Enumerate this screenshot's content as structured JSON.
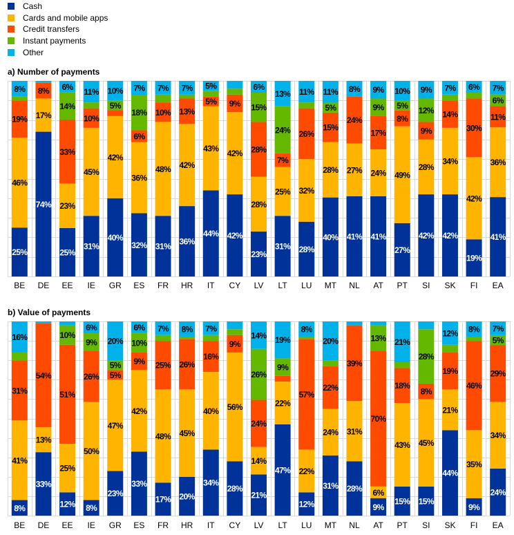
{
  "legend": [
    {
      "label": "Cash",
      "color": "#003299"
    },
    {
      "label": "Cards and mobile apps",
      "color": "#FFB400"
    },
    {
      "label": "Credit transfers",
      "color": "#FF4B00"
    },
    {
      "label": "Instant payments",
      "color": "#65B800"
    },
    {
      "label": "Other",
      "color": "#00B1EA"
    }
  ],
  "chart_data": [
    {
      "type": "bar",
      "stacked": true,
      "normalized_to_100": true,
      "title": "a) Number of payments",
      "xlabel": "",
      "ylabel": "",
      "ylim": [
        0,
        100
      ],
      "value_suffix": "%",
      "min_labeled_value": 5,
      "grid": true,
      "legend": "top-left",
      "categories": [
        "BE",
        "DE",
        "EE",
        "IE",
        "GR",
        "ES",
        "FR",
        "HR",
        "IT",
        "CY",
        "LV",
        "LT",
        "LU",
        "MT",
        "NL",
        "AT",
        "PT",
        "SI",
        "SK",
        "FI",
        "EA"
      ],
      "series": [
        {
          "name": "Cash",
          "color": "#003299",
          "label_color": "#FFFFFF",
          "values": [
            25,
            74,
            25,
            31,
            40,
            32,
            31,
            36,
            44,
            42,
            23,
            31,
            28,
            40,
            41,
            41,
            27,
            42,
            42,
            19,
            41
          ]
        },
        {
          "name": "Cards and mobile apps",
          "color": "#FFB400",
          "label_color": "#000000",
          "values": [
            46,
            17,
            23,
            45,
            42,
            36,
            48,
            42,
            43,
            42,
            28,
            25,
            32,
            28,
            27,
            24,
            49,
            28,
            34,
            42,
            36
          ]
        },
        {
          "name": "Credit transfers",
          "color": "#FF4B00",
          "label_color": "#000000",
          "values": [
            19,
            8,
            33,
            10,
            3,
            6,
            10,
            13,
            5,
            9,
            28,
            7,
            26,
            15,
            24,
            17,
            8,
            9,
            14,
            30,
            11
          ]
        },
        {
          "name": "Instant payments",
          "color": "#65B800",
          "label_color": "#000000",
          "values": [
            2,
            0,
            14,
            3,
            5,
            18,
            4,
            2,
            3,
            3,
            15,
            24,
            3,
            5,
            0,
            9,
            5,
            12,
            3,
            3,
            6
          ]
        },
        {
          "name": "Other",
          "color": "#00B1EA",
          "label_color": "#000000",
          "values": [
            8,
            1,
            6,
            11,
            10,
            7,
            7,
            7,
            5,
            4,
            6,
            13,
            11,
            11,
            8,
            9,
            10,
            9,
            7,
            6,
            7
          ]
        }
      ]
    },
    {
      "type": "bar",
      "stacked": true,
      "normalized_to_100": true,
      "title": "b) Value of payments",
      "xlabel": "",
      "ylabel": "",
      "ylim": [
        0,
        100
      ],
      "value_suffix": "%",
      "min_labeled_value": 5,
      "grid": true,
      "legend": "top-left",
      "categories": [
        "BE",
        "DE",
        "EE",
        "IE",
        "GR",
        "ES",
        "FR",
        "HR",
        "IT",
        "CY",
        "LV",
        "LT",
        "LU",
        "MT",
        "NL",
        "AT",
        "PT",
        "SI",
        "SK",
        "FI",
        "EA"
      ],
      "series": [
        {
          "name": "Cash",
          "color": "#003299",
          "label_color": "#FFFFFF",
          "values": [
            8,
            33,
            12,
            8,
            23,
            33,
            17,
            20,
            34,
            28,
            21,
            47,
            12,
            31,
            28,
            9,
            15,
            15,
            44,
            9,
            24
          ]
        },
        {
          "name": "Cards and mobile apps",
          "color": "#FFB400",
          "label_color": "#000000",
          "values": [
            41,
            13,
            25,
            50,
            47,
            42,
            48,
            45,
            40,
            56,
            14,
            22,
            22,
            24,
            31,
            6,
            43,
            45,
            21,
            35,
            34
          ]
        },
        {
          "name": "Credit transfers",
          "color": "#FF4B00",
          "label_color": "#000000",
          "values": [
            31,
            54,
            51,
            26,
            5,
            9,
            25,
            26,
            16,
            9,
            24,
            3,
            57,
            22,
            39,
            70,
            18,
            8,
            19,
            46,
            29
          ]
        },
        {
          "name": "Instant payments",
          "color": "#65B800",
          "label_color": "#000000",
          "values": [
            4,
            0,
            10,
            9,
            5,
            10,
            3,
            1,
            3,
            3,
            26,
            9,
            1,
            3,
            0,
            13,
            3,
            28,
            4,
            2,
            5
          ]
        },
        {
          "name": "Other",
          "color": "#00B1EA",
          "label_color": "#000000",
          "values": [
            16,
            1,
            2,
            6,
            20,
            6,
            7,
            8,
            7,
            4,
            14,
            19,
            8,
            20,
            2,
            2,
            21,
            4,
            12,
            8,
            7
          ]
        }
      ]
    }
  ]
}
